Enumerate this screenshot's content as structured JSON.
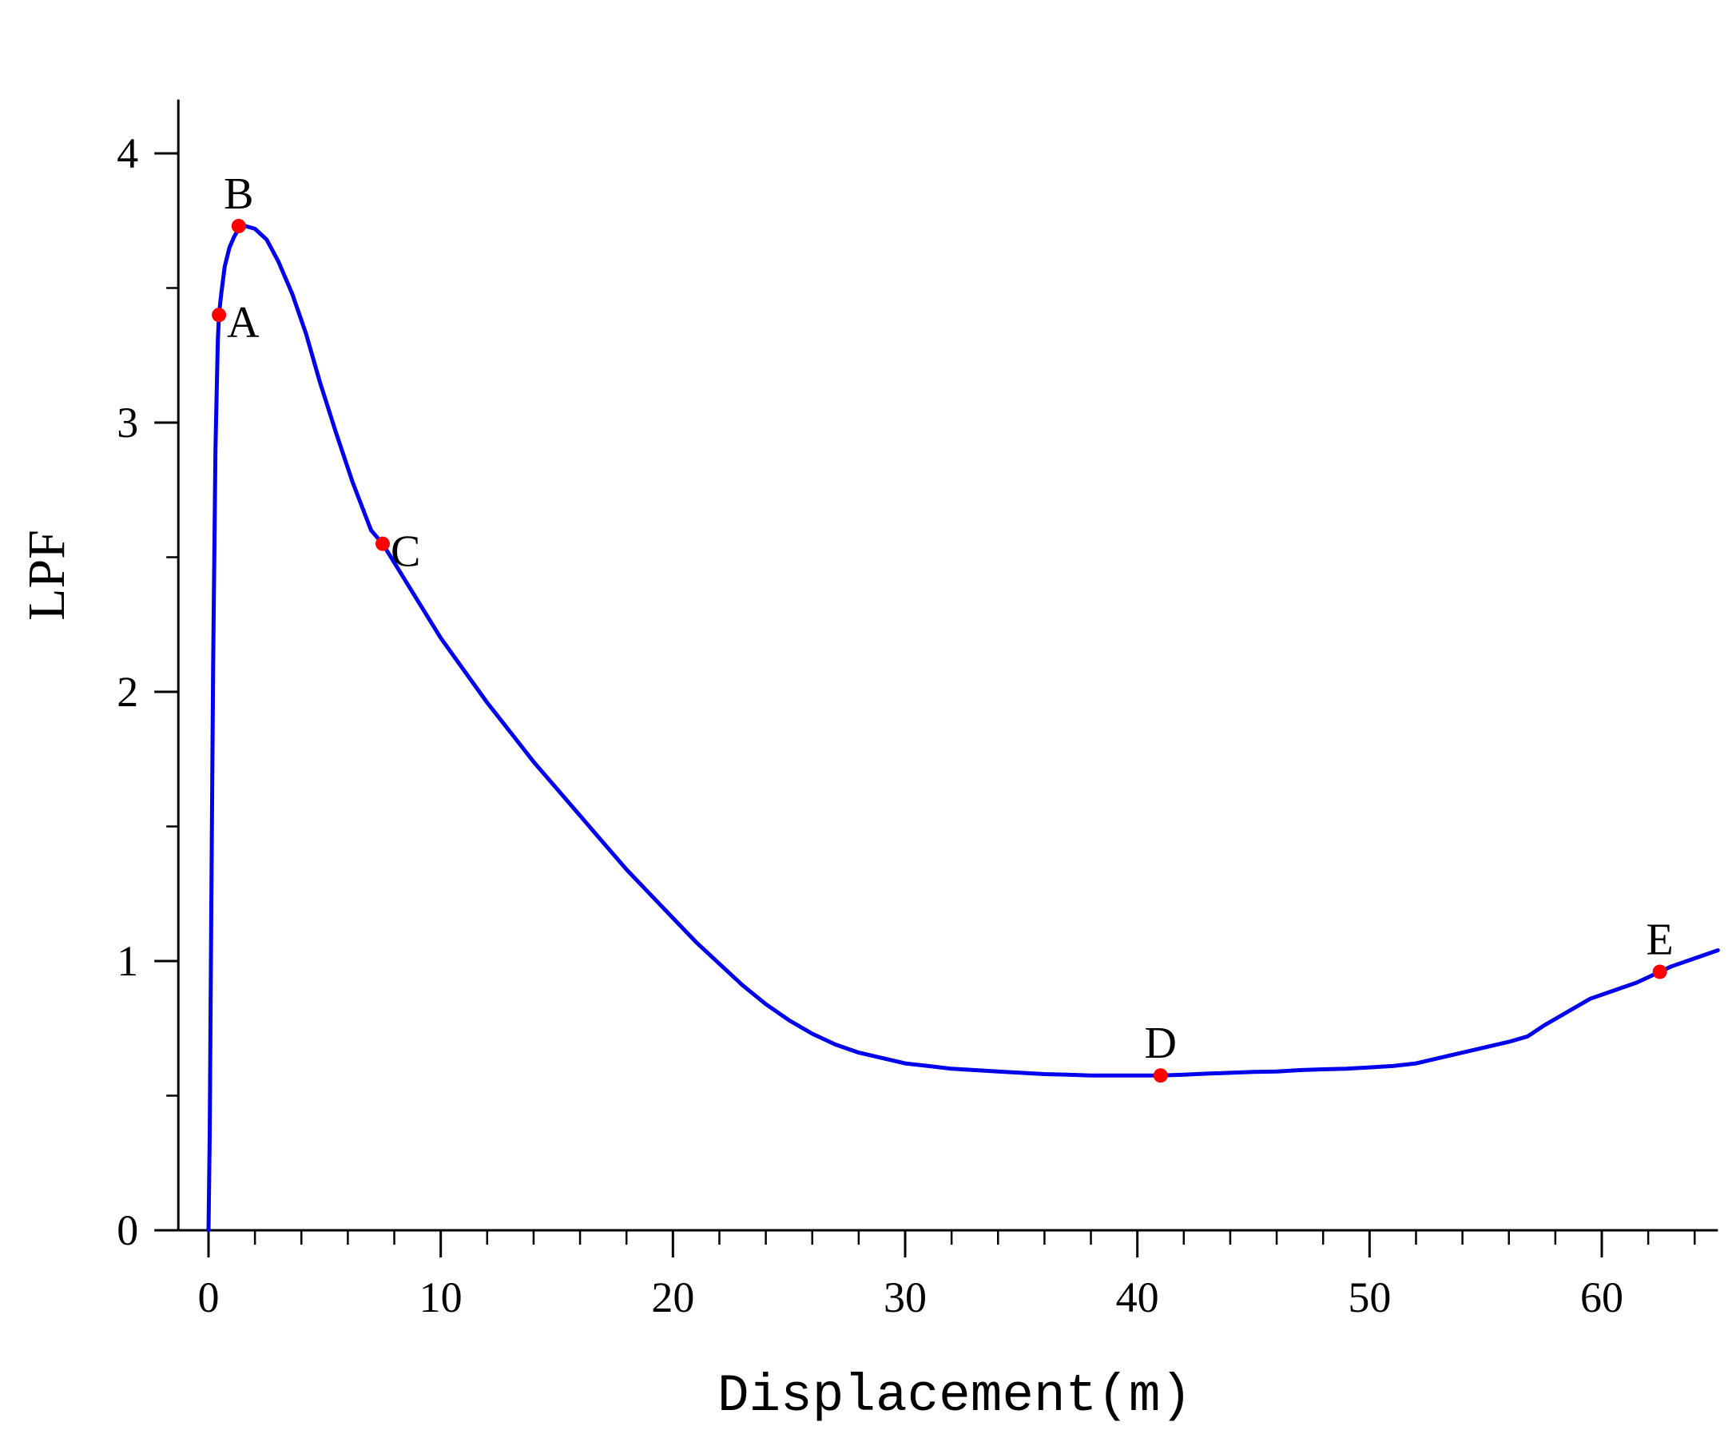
{
  "chart_data": {
    "type": "line",
    "title": "",
    "xlabel": "Displacement(m)",
    "ylabel": "LPF",
    "xlim": [
      -1.3,
      65
    ],
    "ylim": [
      0,
      4.2
    ],
    "x_ticks": [
      0,
      10,
      20,
      30,
      40,
      50,
      60
    ],
    "x_minor_step": 2,
    "y_ticks": [
      0,
      1,
      2,
      3,
      4
    ],
    "y_minor_step": 0.5,
    "grid": false,
    "colors": {
      "line": "#0000ee",
      "points": "#ff0000",
      "axis": "#000000"
    },
    "series": [
      {
        "x": [
          0,
          0.05,
          0.12,
          0.2,
          0.3,
          0.4,
          0.45,
          0.55,
          0.7,
          0.9,
          1.1,
          1.3,
          1.6,
          2.0,
          2.5,
          3.0,
          3.6,
          4.2,
          4.8,
          5.5,
          6.2,
          7.0,
          7.5,
          8.0,
          9.0,
          10.0,
          11.0,
          12.0,
          13.0,
          14.0,
          15.0,
          16.0,
          17.0,
          18.0,
          19.0,
          20.0,
          21.0,
          22.0,
          23.0,
          24.0,
          25.0,
          26.0,
          27.0,
          28.0,
          29.0,
          30.0,
          31.0,
          32.0,
          33.0,
          34.0,
          35.0,
          36.0,
          37.0,
          38.0,
          39.0,
          40.0,
          41.0,
          42.0,
          43.0,
          44.0,
          45.0,
          46.0,
          47.0,
          48.0,
          49.0,
          50.0,
          51.0,
          52.0,
          53.0,
          54.0,
          55.0,
          56.0,
          56.8,
          57.5,
          58.5,
          59.5,
          60.5,
          61.5,
          62.5,
          63.0,
          64.0,
          65.0
        ],
        "y": [
          0.0,
          0.35,
          1.2,
          2.1,
          2.9,
          3.3,
          3.4,
          3.48,
          3.58,
          3.65,
          3.69,
          3.72,
          3.73,
          3.72,
          3.68,
          3.6,
          3.48,
          3.33,
          3.15,
          2.96,
          2.78,
          2.6,
          2.55,
          2.48,
          2.34,
          2.2,
          2.08,
          1.96,
          1.85,
          1.74,
          1.64,
          1.54,
          1.44,
          1.34,
          1.25,
          1.16,
          1.07,
          0.99,
          0.91,
          0.84,
          0.78,
          0.73,
          0.69,
          0.66,
          0.64,
          0.62,
          0.61,
          0.6,
          0.595,
          0.59,
          0.585,
          0.58,
          0.578,
          0.575,
          0.575,
          0.575,
          0.575,
          0.578,
          0.582,
          0.585,
          0.588,
          0.59,
          0.595,
          0.598,
          0.6,
          0.605,
          0.61,
          0.62,
          0.64,
          0.66,
          0.68,
          0.7,
          0.72,
          0.76,
          0.81,
          0.86,
          0.89,
          0.92,
          0.96,
          0.98,
          1.01,
          1.04
        ]
      }
    ],
    "points": [
      {
        "label": "A",
        "x": 0.45,
        "y": 3.4,
        "label_side": "right"
      },
      {
        "label": "B",
        "x": 1.3,
        "y": 3.73,
        "label_side": "top"
      },
      {
        "label": "C",
        "x": 7.5,
        "y": 2.55,
        "label_side": "right"
      },
      {
        "label": "D",
        "x": 41.0,
        "y": 0.575,
        "label_side": "top"
      },
      {
        "label": "E",
        "x": 62.5,
        "y": 0.96,
        "label_side": "top"
      }
    ]
  }
}
